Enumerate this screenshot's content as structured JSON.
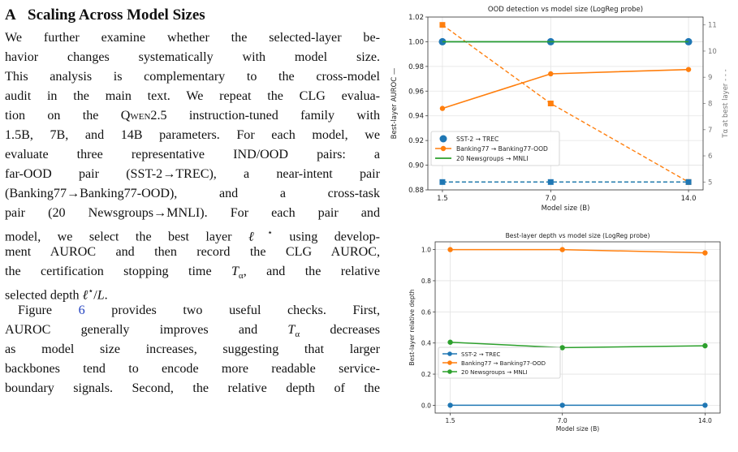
{
  "section": {
    "number": "A",
    "title": "Scaling Across Model Sizes"
  },
  "paragraph1": {
    "lines": [
      "We further examine whether the selected-layer be-",
      "havior changes systematically with model size.",
      "This analysis is complementary to the cross-model",
      "audit in the main text. We repeat the CLG evalua-",
      "tion on the QWEN2.5 instruction-tuned family with",
      "1.5B, 7B, and 14B parameters. For each model, we",
      "evaluate three representative IND/OOD pairs: a",
      "far-OOD pair (SST-2→TREC), a near-intent pair",
      "(Banking77→Banking77-OOD), and a cross-task",
      "pair (20 Newsgroups→MNLI). For each pair and",
      "model, we select the best layer ℓ* using develop-",
      "ment AUROC and then record the CLG AUROC,",
      "the certification stopping time Tα, and the relative",
      "selected depth ℓ*/L."
    ]
  },
  "paragraph2": {
    "lines": [
      "Figure 6 provides two useful checks. First,",
      "AUROC generally improves and Tα decreases",
      "as model size increases, suggesting that larger",
      "backbones tend to encode more readable service-",
      "boundary signals. Second, the relative depth of the"
    ]
  },
  "chart_data": [
    {
      "type": "line",
      "title": "OOD detection vs model size (LogReg probe)",
      "xlabel": "Model size (B)",
      "ylabel": "Best-layer AUROC",
      "y2label": "Tα at best layer",
      "x": [
        1.5,
        7.0,
        14.0
      ],
      "xticks": [
        "1.5",
        "7.0",
        "14.0"
      ],
      "ylim": [
        0.88,
        1.02
      ],
      "yticks": [
        "0.88",
        "0.90",
        "0.92",
        "0.94",
        "0.96",
        "0.98",
        "1.00",
        "1.02"
      ],
      "y2lim": [
        4.7,
        11.3
      ],
      "y2ticks": [
        "5",
        "6",
        "7",
        "8",
        "9",
        "10",
        "11"
      ],
      "grid": true,
      "legend_position": "lower-left",
      "series": [
        {
          "name": "SST-2 → TREC",
          "color": "#1f77b4",
          "auroc": [
            1.0,
            1.0,
            1.0
          ],
          "t_alpha": [
            5,
            5,
            5
          ]
        },
        {
          "name": "Banking77 → Banking77-OOD",
          "color": "#ff7f0e",
          "auroc": [
            0.946,
            0.974,
            0.9775
          ],
          "t_alpha": [
            11,
            8,
            5
          ]
        },
        {
          "name": "20 Newsgroups → MNLI",
          "color": "#2ca02c",
          "auroc": [
            1.0,
            1.0,
            1.0
          ],
          "t_alpha": [
            5,
            5,
            5
          ]
        }
      ]
    },
    {
      "type": "line",
      "title": "Best-layer depth vs model size (LogReg probe)",
      "xlabel": "Model size (B)",
      "ylabel": "Best-layer relative depth",
      "x": [
        1.5,
        7.0,
        14.0
      ],
      "xticks": [
        "1.5",
        "7.0",
        "14.0"
      ],
      "ylim": [
        -0.05,
        1.05
      ],
      "yticks": [
        "0.0",
        "0.2",
        "0.4",
        "0.6",
        "0.8",
        "1.0"
      ],
      "grid": true,
      "legend_position": "lower-left",
      "series": [
        {
          "name": "SST-2 → TREC",
          "color": "#1f77b4",
          "values": [
            0.0,
            0.0,
            0.0
          ]
        },
        {
          "name": "Banking77 → Banking77-OOD",
          "color": "#ff7f0e",
          "values": [
            1.0,
            1.0,
            0.979
          ]
        },
        {
          "name": "20 Newsgroups → MNLI",
          "color": "#2ca02c",
          "values": [
            0.405,
            0.37,
            0.382
          ]
        }
      ]
    }
  ]
}
